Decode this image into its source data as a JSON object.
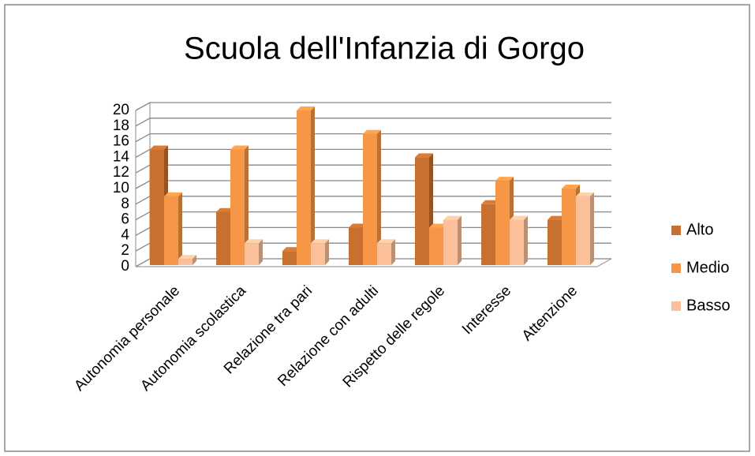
{
  "chart_data": {
    "type": "bar",
    "title": "Scuola dell'Infanzia di Gorgo",
    "categories": [
      "Autonomia personale",
      "Autonomia scolastica",
      "Relazione tra pari",
      "Relazione con adulti",
      "Rispetto delle regole",
      "Interesse",
      "Attenzione"
    ],
    "series": [
      {
        "name": "Alto",
        "color": "#c8702f",
        "values": [
          15,
          7,
          2,
          5,
          14,
          8,
          6
        ]
      },
      {
        "name": "Medio",
        "color": "#f79646",
        "values": [
          9,
          15,
          20,
          17,
          5,
          11,
          10
        ]
      },
      {
        "name": "Basso",
        "color": "#fbc09a",
        "values": [
          1,
          3,
          3,
          3,
          6,
          6,
          9
        ]
      }
    ],
    "ylim": [
      0,
      20
    ],
    "yticks": [
      0,
      2,
      4,
      6,
      8,
      10,
      12,
      14,
      16,
      18,
      20
    ],
    "grid": true,
    "legend": "right"
  }
}
